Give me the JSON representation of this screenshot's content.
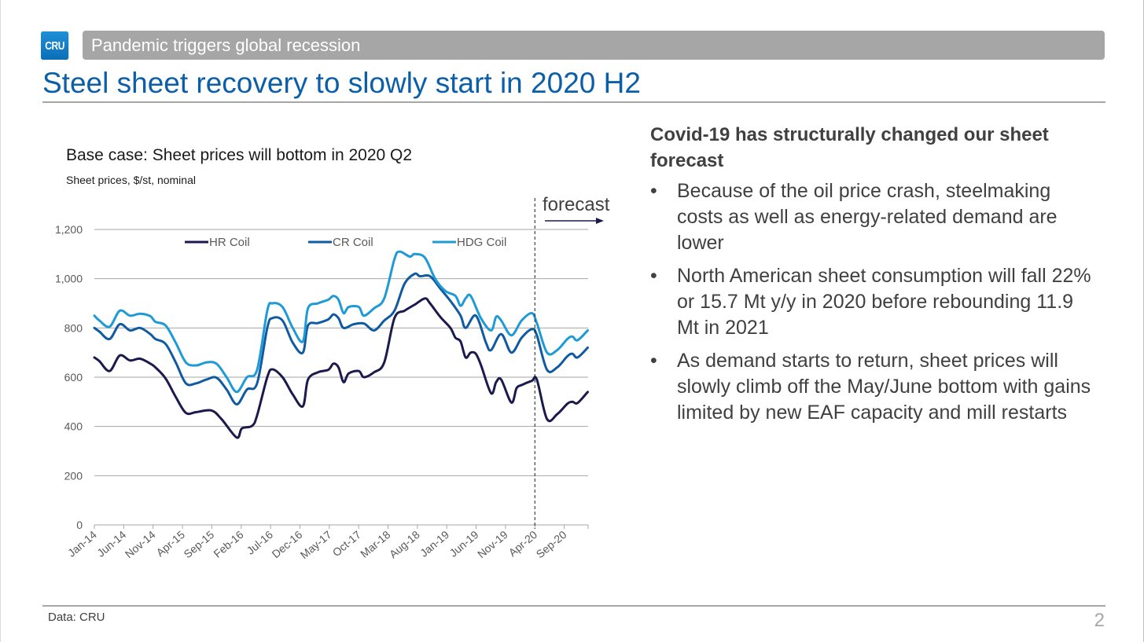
{
  "slide": {
    "logo_text": "CRU",
    "banner": "Pandemic triggers global recession",
    "title": "Steel sheet recovery to slowly start in 2020 H2",
    "source": "Data: CRU",
    "page_number": "2"
  },
  "colors": {
    "brand_blue": "#0b5ea8",
    "banner_gray": "#a6a6a6",
    "hr_coil": "#1b1a4d",
    "cr_coil": "#0f5aa0",
    "hdg_coil": "#1e9ad6"
  },
  "panel": {
    "heading": "Covid-19 has structurally changed our sheet forecast",
    "bullet_glyph": "•",
    "bullets": [
      "Because of the oil price crash, steelmaking costs as well as energy-related demand are lower",
      "North American sheet consumption will fall 22% or 15.7 Mt y/y in 2020 before rebounding 11.9 Mt in 2021",
      "As demand starts to return, sheet prices will slowly climb off the May/June bottom with gains limited by new EAF capacity and mill restarts"
    ]
  },
  "chart_data": {
    "type": "line",
    "title": "Base case: Sheet prices will bottom in 2020 Q2",
    "subtitle": "Sheet prices, $/st, nominal",
    "xlabel": "",
    "ylabel": "",
    "ylim": [
      0,
      1200
    ],
    "yticks": [
      0,
      200,
      400,
      600,
      800,
      1000,
      1200
    ],
    "ytick_labels": [
      "0",
      "200",
      "400",
      "600",
      "800",
      "1,000",
      "1,200"
    ],
    "x_start": "Jan-14",
    "x_end": "Jan-21",
    "x_frequency": "monthly",
    "xtick_labels": [
      "Jan-14",
      "Jun-14",
      "Nov-14",
      "Apr-15",
      "Sep-15",
      "Feb-16",
      "Jul-16",
      "Dec-16",
      "May-17",
      "Oct-17",
      "Mar-18",
      "Aug-18",
      "Jan-19",
      "Jun-19",
      "Nov-19",
      "Apr-20",
      "Sep-20"
    ],
    "xtick_month_index": [
      0,
      5,
      10,
      15,
      20,
      25,
      30,
      35,
      40,
      45,
      50,
      55,
      60,
      65,
      70,
      75,
      80
    ],
    "grid": true,
    "legend": {
      "position": "top-center",
      "entries": [
        "HR Coil",
        "CR Coil",
        "HDG Coil"
      ]
    },
    "forecast": {
      "label": "forecast",
      "starts_at": "Apr-20",
      "month_index": 75
    },
    "series": [
      {
        "name": "HR Coil",
        "anchors": [
          [
            0,
            680
          ],
          [
            1,
            665
          ],
          [
            3,
            625
          ],
          [
            5,
            688
          ],
          [
            7,
            668
          ],
          [
            9,
            675
          ],
          [
            11,
            655
          ],
          [
            12,
            640
          ],
          [
            14,
            595
          ],
          [
            16,
            520
          ],
          [
            18,
            455
          ],
          [
            20,
            458
          ],
          [
            23,
            465
          ],
          [
            25,
            430
          ],
          [
            28,
            355
          ],
          [
            29,
            392
          ],
          [
            31,
            402
          ],
          [
            32,
            445
          ],
          [
            34,
            600
          ],
          [
            35,
            632
          ],
          [
            37,
            600
          ],
          [
            39,
            530
          ],
          [
            41,
            482
          ],
          [
            42,
            590
          ],
          [
            44,
            620
          ],
          [
            46,
            630
          ],
          [
            47,
            655
          ],
          [
            48,
            640
          ],
          [
            49,
            580
          ],
          [
            50,
            615
          ],
          [
            52,
            625
          ],
          [
            53,
            600
          ],
          [
            55,
            620
          ],
          [
            57,
            660
          ],
          [
            59,
            840
          ],
          [
            61,
            870
          ],
          [
            63,
            895
          ],
          [
            65,
            920
          ],
          [
            66,
            900
          ],
          [
            68,
            845
          ],
          [
            70,
            800
          ],
          [
            71,
            760
          ],
          [
            72,
            745
          ],
          [
            73,
            680
          ],
          [
            74,
            700
          ],
          [
            75,
            695
          ],
          [
            76,
            650
          ],
          [
            78,
            535
          ],
          [
            79,
            580
          ],
          [
            80,
            590
          ],
          [
            82,
            497
          ],
          [
            83,
            555
          ],
          [
            84,
            568
          ],
          [
            86,
            585
          ],
          [
            87,
            590
          ],
          [
            89,
            430
          ],
          [
            91,
            450
          ],
          [
            93,
            492
          ],
          [
            94,
            500
          ],
          [
            95,
            495
          ],
          [
            97,
            540
          ]
        ]
      },
      {
        "name": "CR Coil",
        "anchors": [
          [
            0,
            800
          ],
          [
            1,
            785
          ],
          [
            3,
            755
          ],
          [
            5,
            815
          ],
          [
            7,
            790
          ],
          [
            9,
            800
          ],
          [
            11,
            775
          ],
          [
            12,
            755
          ],
          [
            14,
            735
          ],
          [
            16,
            660
          ],
          [
            18,
            575
          ],
          [
            20,
            575
          ],
          [
            22,
            590
          ],
          [
            24,
            598
          ],
          [
            26,
            550
          ],
          [
            28,
            490
          ],
          [
            30,
            550
          ],
          [
            32,
            575
          ],
          [
            34,
            800
          ],
          [
            35,
            840
          ],
          [
            37,
            830
          ],
          [
            39,
            740
          ],
          [
            41,
            700
          ],
          [
            42,
            810
          ],
          [
            44,
            820
          ],
          [
            46,
            835
          ],
          [
            47,
            855
          ],
          [
            48,
            840
          ],
          [
            49,
            800
          ],
          [
            51,
            815
          ],
          [
            53,
            818
          ],
          [
            55,
            790
          ],
          [
            57,
            830
          ],
          [
            59,
            870
          ],
          [
            61,
            980
          ],
          [
            63,
            1020
          ],
          [
            64,
            1010
          ],
          [
            66,
            1010
          ],
          [
            68,
            960
          ],
          [
            70,
            910
          ],
          [
            72,
            850
          ],
          [
            73,
            800
          ],
          [
            75,
            850
          ],
          [
            77,
            740
          ],
          [
            78,
            710
          ],
          [
            80,
            775
          ],
          [
            82,
            700
          ],
          [
            84,
            760
          ],
          [
            86,
            795
          ],
          [
            87,
            770
          ],
          [
            89,
            630
          ],
          [
            91,
            640
          ],
          [
            93,
            685
          ],
          [
            94,
            695
          ],
          [
            95,
            680
          ],
          [
            97,
            720
          ]
        ]
      },
      {
        "name": "HDG Coil",
        "anchors": [
          [
            0,
            850
          ],
          [
            1,
            830
          ],
          [
            3,
            805
          ],
          [
            5,
            870
          ],
          [
            7,
            850
          ],
          [
            9,
            858
          ],
          [
            11,
            848
          ],
          [
            12,
            825
          ],
          [
            14,
            810
          ],
          [
            16,
            740
          ],
          [
            18,
            660
          ],
          [
            20,
            648
          ],
          [
            22,
            660
          ],
          [
            24,
            655
          ],
          [
            26,
            600
          ],
          [
            28,
            540
          ],
          [
            30,
            600
          ],
          [
            32,
            630
          ],
          [
            34,
            870
          ],
          [
            35,
            900
          ],
          [
            37,
            885
          ],
          [
            39,
            800
          ],
          [
            41,
            745
          ],
          [
            42,
            880
          ],
          [
            44,
            900
          ],
          [
            46,
            915
          ],
          [
            47,
            930
          ],
          [
            48,
            915
          ],
          [
            49,
            860
          ],
          [
            50,
            885
          ],
          [
            52,
            885
          ],
          [
            53,
            850
          ],
          [
            55,
            880
          ],
          [
            57,
            920
          ],
          [
            59,
            1080
          ],
          [
            60,
            1110
          ],
          [
            62,
            1090
          ],
          [
            63,
            1100
          ],
          [
            65,
            1085
          ],
          [
            67,
            1000
          ],
          [
            69,
            950
          ],
          [
            71,
            930
          ],
          [
            72,
            890
          ],
          [
            73,
            920
          ],
          [
            74,
            930
          ],
          [
            76,
            840
          ],
          [
            78,
            790
          ],
          [
            79,
            845
          ],
          [
            80,
            830
          ],
          [
            82,
            770
          ],
          [
            84,
            830
          ],
          [
            86,
            860
          ],
          [
            87,
            820
          ],
          [
            89,
            700
          ],
          [
            91,
            710
          ],
          [
            93,
            755
          ],
          [
            94,
            765
          ],
          [
            95,
            750
          ],
          [
            97,
            790
          ]
        ]
      }
    ]
  }
}
